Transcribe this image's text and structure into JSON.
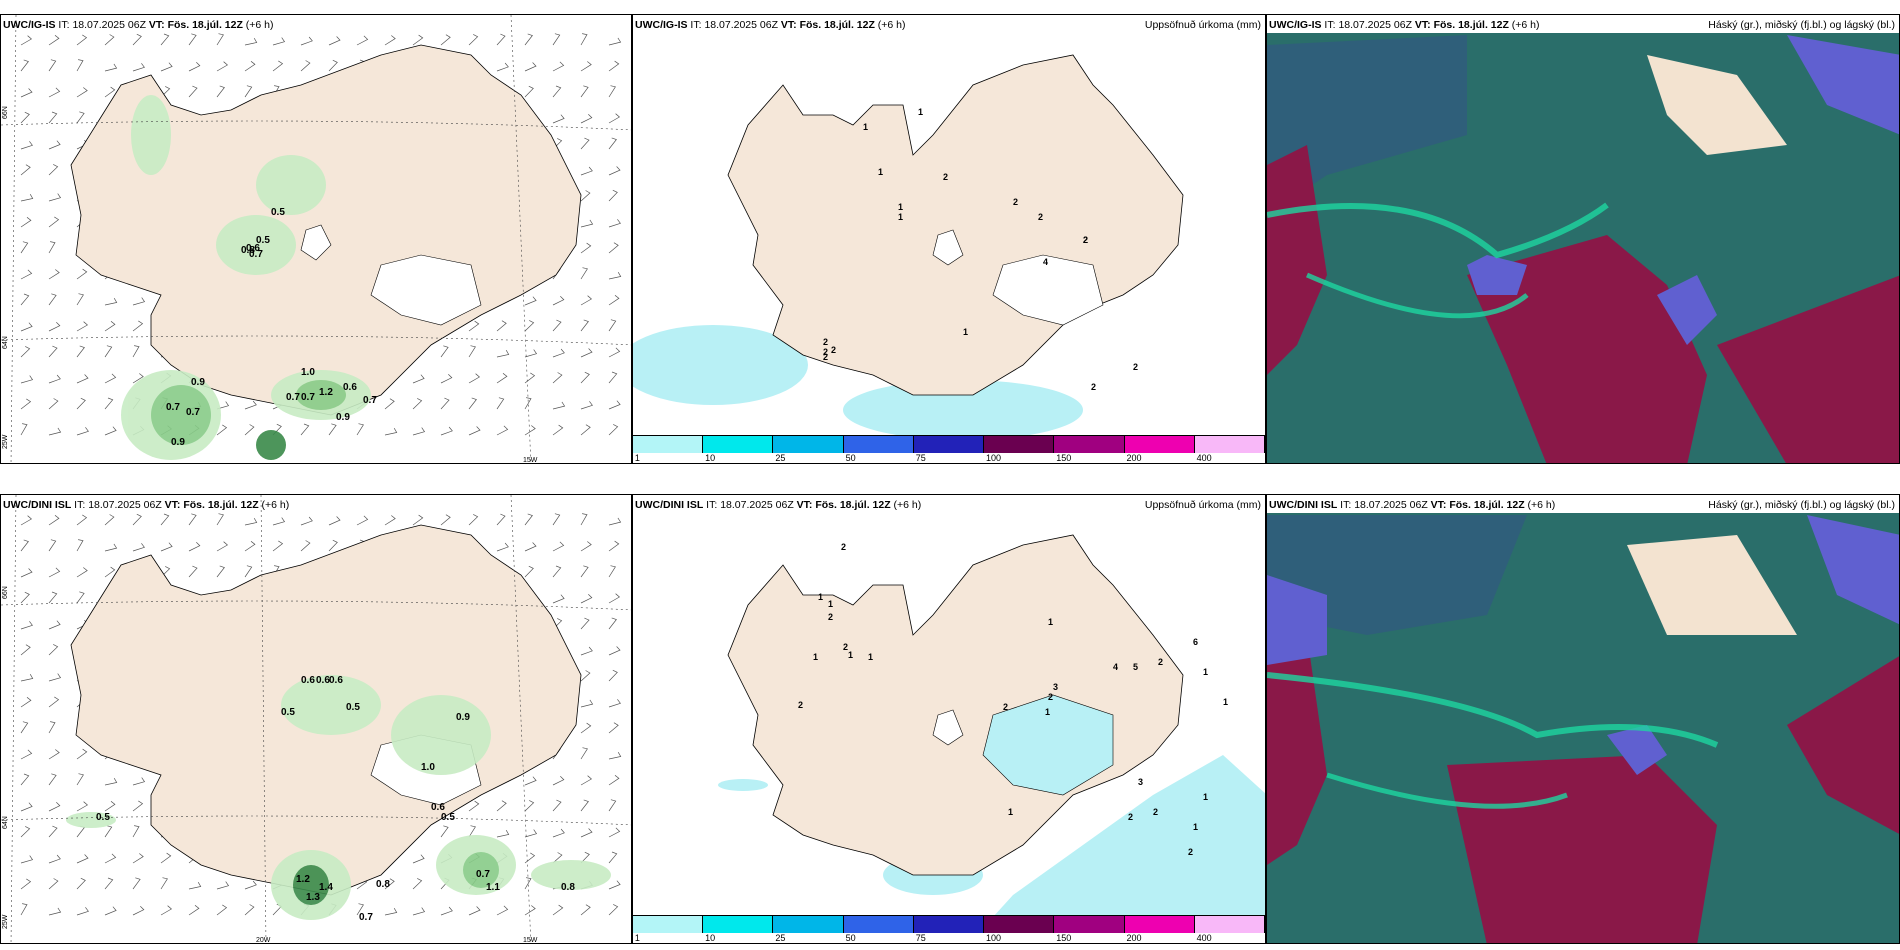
{
  "rows": [
    {
      "model": "UWC/IG-IS",
      "it_label": "IT:",
      "it_value": "18.07.2025 06Z",
      "vt_label": "VT:",
      "vt_value": "Fös. 18.júl. 12Z",
      "lead": "(+6 h)",
      "wind_values": [
        "0.5",
        "0.5",
        "0.8",
        "0.7",
        "0.6",
        "0.9",
        "0.7",
        "0.7",
        "0.9",
        "1.0",
        "0.7",
        "1.2",
        "0.6",
        "0.7",
        "0.9",
        "0.7"
      ],
      "precip_values": [
        "2",
        "2",
        "2",
        "2",
        "1",
        "1",
        "1",
        "1",
        "1",
        "2",
        "2",
        "2",
        "4",
        "2",
        "2",
        "2",
        "1",
        "2"
      ],
      "gridlabels": {
        "lat_top": "66N",
        "lat_mid": "64N",
        "lon_left": "25W",
        "lon_right": "15W",
        "lat_right_top": "66N",
        "lat_right_mid": "64N"
      }
    },
    {
      "model": "UWC/DINI ISL",
      "it_label": "IT:",
      "it_value": "18.07.2025 06Z",
      "vt_label": "VT:",
      "vt_value": "Fös. 18.júl. 12Z",
      "lead": "(+6 h)",
      "wind_values": [
        "0.6",
        "0.6",
        "0.6",
        "0.5",
        "0.5",
        "0.9",
        "1.0",
        "0.6",
        "0.5",
        "0.5",
        "1.2",
        "1.4",
        "1.3",
        "0.8",
        "0.7",
        "0.7",
        "1.1",
        "0.8"
      ],
      "precip_values": [
        "2",
        "1",
        "1",
        "2",
        "2",
        "1",
        "1",
        "2",
        "1",
        "4",
        "5",
        "3",
        "2",
        "6",
        "2",
        "2",
        "1",
        "1",
        "1",
        "1",
        "3",
        "2",
        "2",
        "2",
        "1",
        "1",
        "1"
      ],
      "gridlabels": {
        "lat_top": "66N",
        "lat_mid": "64N",
        "lon_left": "25W",
        "lon_mid": "20W",
        "lon_right": "15W",
        "lat_right_top": "66N",
        "lat_right_mid": "64N"
      }
    }
  ],
  "precip_title": "Uppsöfnuð úrkoma (mm)",
  "cloud_title": "Háský (gr.), miðský (fj.bl.) og lágský (bl.)",
  "colorbar": {
    "labels": [
      "1",
      "10",
      "25",
      "50",
      "75",
      "100",
      "150",
      "200",
      "400"
    ],
    "colors": [
      "#b3f5f7",
      "#00e8ec",
      "#00b6e8",
      "#2f63e8",
      "#2222b8",
      "#6a0050",
      "#a00080",
      "#ee00b0",
      "#f8b8f8"
    ]
  },
  "colors": {
    "land": "#f5e7d9",
    "precip_light": "#b8f0f5",
    "green_light": "#c8ecc4",
    "green_mid": "#88cc88",
    "green_dark": "#3a8a4a",
    "cloud_teal": "#2a6e6a",
    "cloud_maroon": "#8a1848",
    "cloud_blue": "#6060d0"
  }
}
